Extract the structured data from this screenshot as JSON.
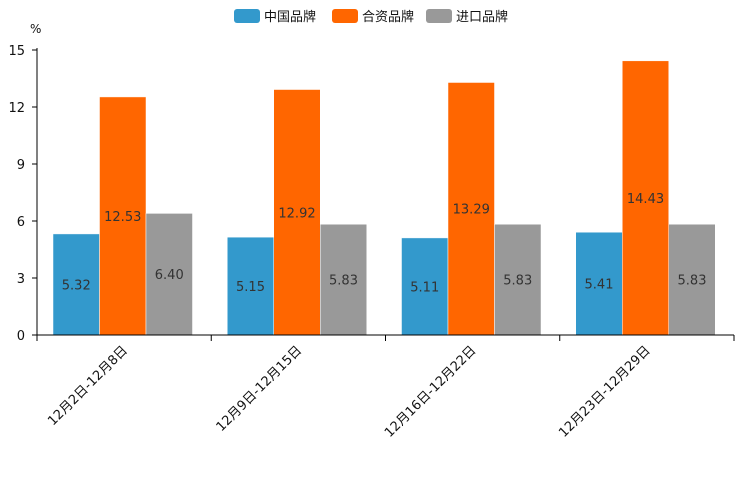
{
  "chart_data": {
    "type": "bar",
    "title": "",
    "xlabel": "",
    "ylabel": "%",
    "ylim": [
      0,
      15
    ],
    "yticks": [
      "0",
      "3",
      "6",
      "9",
      "12",
      "15"
    ],
    "categories": [
      "12月2日-12月8日",
      "12月9日-12月15日",
      "12月16日-12月22日",
      "12月23日-12月29日"
    ],
    "series": [
      {
        "name": "中国品牌",
        "color": "#3399cc",
        "values": [
          5.32,
          5.15,
          5.11,
          5.41
        ],
        "labels": [
          "5.32",
          "5.15",
          "5.11",
          "5.41"
        ]
      },
      {
        "name": "合资品牌",
        "color": "#ff6600",
        "values": [
          12.53,
          12.92,
          13.29,
          14.43
        ],
        "labels": [
          "12.53",
          "12.92",
          "13.29",
          "14.43"
        ]
      },
      {
        "name": "进口品牌",
        "color": "#999999",
        "values": [
          6.4,
          5.83,
          5.83,
          5.83
        ],
        "labels": [
          "6.40",
          "5.83",
          "5.83",
          "5.83"
        ]
      }
    ],
    "legend_position": "top-center",
    "grid": false
  }
}
